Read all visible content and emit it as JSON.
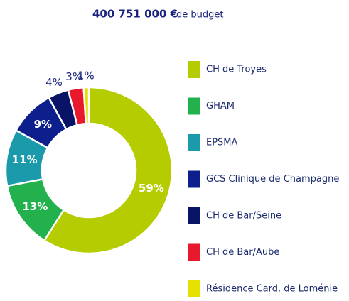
{
  "chart_data": {
    "type": "donut",
    "title": "400 751 000 €",
    "subtitle": "de budget",
    "categories": [
      "CH de Troyes",
      "GHAM",
      "EPSMA",
      "GCS Clinique de Champagne",
      "CH de Bar/Seine",
      "CH de Bar/Aube",
      "Résidence Card. de Loménie"
    ],
    "values": [
      59,
      13,
      11,
      9,
      4,
      3,
      1
    ],
    "value_labels": [
      "59%",
      "13%",
      "11%",
      "9%",
      "4%",
      "3%",
      "1%"
    ],
    "colors": [
      "#b5cc00",
      "#22b14c",
      "#1a9aaa",
      "#0d1f8c",
      "#0a1466",
      "#e8192c",
      "#e6e000"
    ],
    "legend": "right"
  }
}
